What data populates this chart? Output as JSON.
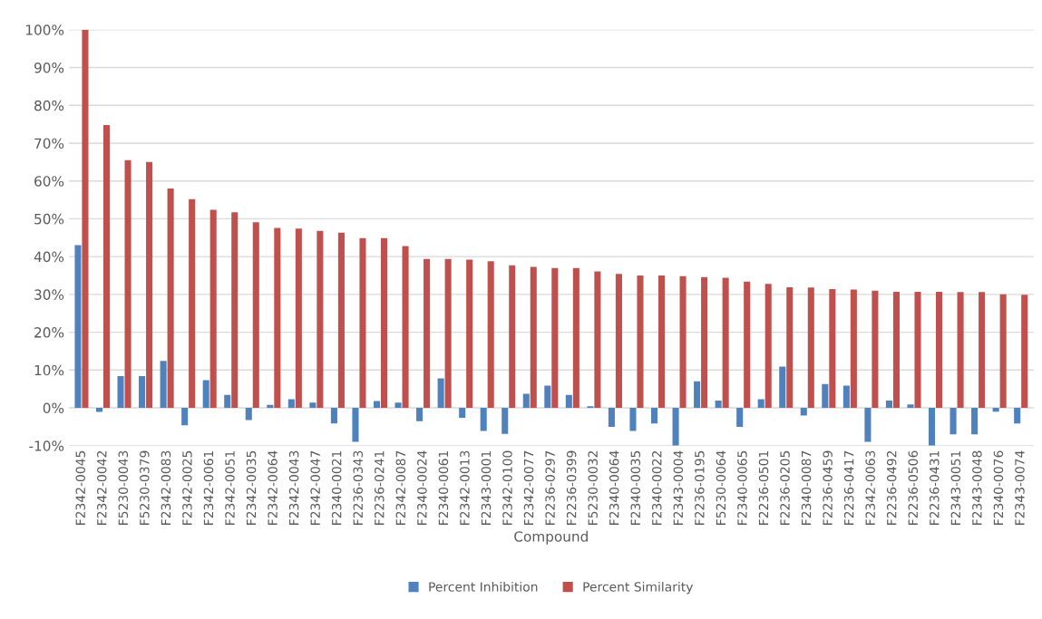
{
  "chart_data": {
    "type": "bar",
    "xlabel": "Compound",
    "categories": [
      "F2342-0045",
      "F2342-0042",
      "F5230-0043",
      "F5230-0379",
      "F2342-0083",
      "F2342-0025",
      "F2342-0061",
      "F2342-0051",
      "F2342-0035",
      "F2342-0064",
      "F2342-0043",
      "F2342-0047",
      "F2340-0021",
      "F2236-0343",
      "F2236-0241",
      "F2342-0087",
      "F2340-0024",
      "F2340-0061",
      "F2342-0013",
      "F2343-0001",
      "F2342-0100",
      "F2342-0077",
      "F2236-0297",
      "F2236-0399",
      "F5230-0032",
      "F2340-0064",
      "F2340-0035",
      "F2340-0022",
      "F2343-0004",
      "F2236-0195",
      "F5230-0064",
      "F2340-0065",
      "F2236-0501",
      "F2236-0205",
      "F2340-0087",
      "F2236-0459",
      "F2236-0417",
      "F2342-0063",
      "F2236-0492",
      "F2236-0506",
      "F2236-0431",
      "F2343-0051",
      "F2343-0048",
      "F2340-0076",
      "F2343-0074"
    ],
    "series": [
      {
        "name": "Percent Inhibition",
        "color": "#4f81bd",
        "values": [
          43,
          -1.1,
          8.4,
          8.4,
          12.4,
          -4.6,
          7.3,
          3.4,
          -3.2,
          0.8,
          2.3,
          1.4,
          -4.1,
          -9,
          1.8,
          1.4,
          -3.5,
          7.8,
          -2.6,
          -6.1,
          -6.9,
          3.7,
          5.9,
          3.4,
          0.4,
          -5,
          -6.1,
          -4.1,
          -10,
          7,
          1.9,
          -5,
          2.3,
          10.9,
          -2,
          6.3,
          5.9,
          -9,
          1.9,
          0.9,
          -10,
          -7,
          -7,
          -1,
          -4.1
        ]
      },
      {
        "name": "Percent Similarity",
        "color": "#c0504d",
        "values": [
          100,
          74.8,
          65.5,
          65,
          58,
          55.2,
          52.4,
          51.7,
          49.1,
          47.6,
          47.4,
          46.8,
          46.3,
          44.9,
          44.9,
          42.8,
          39.4,
          39.4,
          39.2,
          38.8,
          37.7,
          37.3,
          37,
          37,
          36.1,
          35.4,
          35,
          35,
          34.8,
          34.6,
          34.4,
          33.4,
          32.8,
          31.9,
          31.8,
          31.4,
          31.3,
          31,
          30.7,
          30.7,
          30.7,
          30.6,
          30.6,
          30,
          29.9
        ]
      }
    ],
    "ylim": [
      -10,
      100
    ],
    "yticks": [
      {
        "value": -10,
        "label": "-10%"
      },
      {
        "value": 0,
        "label": "0%"
      },
      {
        "value": 10,
        "label": "10%"
      },
      {
        "value": 20,
        "label": "20%"
      },
      {
        "value": 30,
        "label": "30%"
      },
      {
        "value": 40,
        "label": "40%"
      },
      {
        "value": 50,
        "label": "50%"
      },
      {
        "value": 60,
        "label": "60%"
      },
      {
        "value": 70,
        "label": "70%"
      },
      {
        "value": 80,
        "label": "80%"
      },
      {
        "value": 90,
        "label": "90%"
      },
      {
        "value": 100,
        "label": "100%"
      }
    ],
    "grid": "y",
    "legend": "bottom"
  }
}
